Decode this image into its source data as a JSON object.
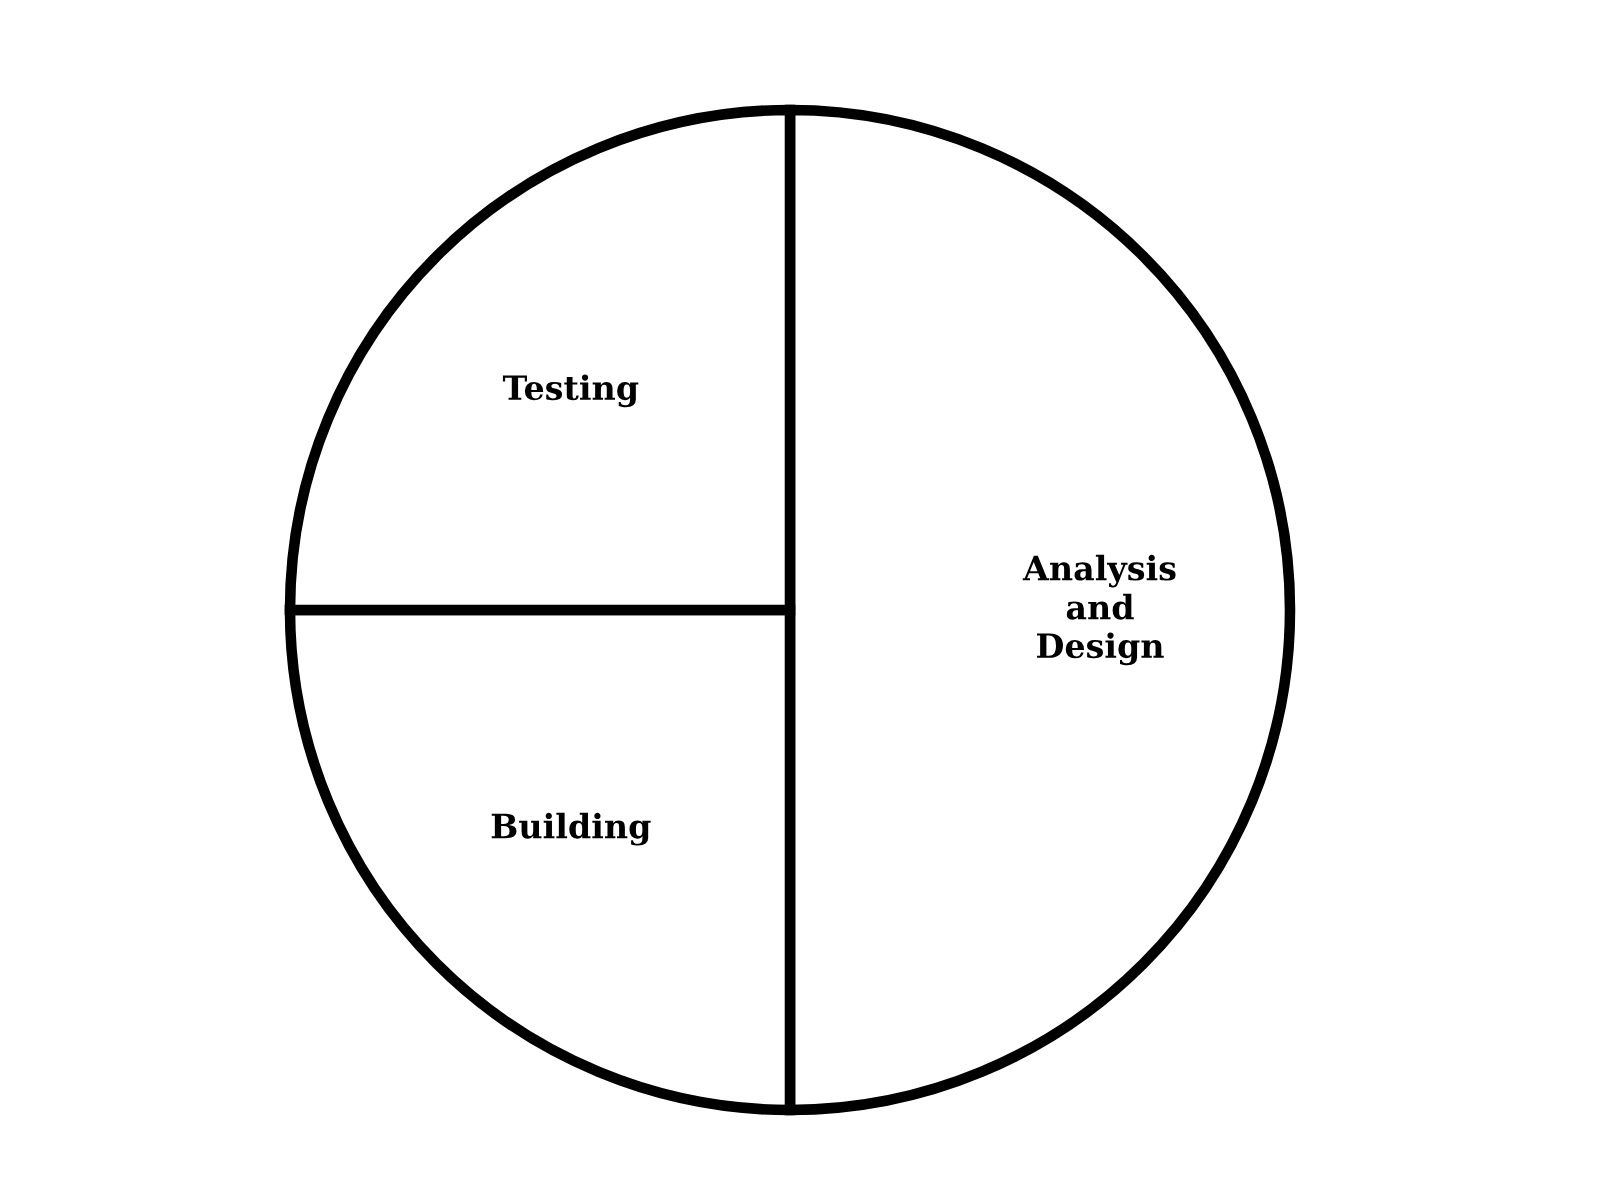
{
  "chart_data": {
    "type": "pie",
    "categories": [
      "Analysis\nand\nDesign",
      "Building",
      "Testing"
    ],
    "values": [
      50,
      25,
      25
    ],
    "colors": [
      "#ffffff",
      "#ffffff",
      "#ffffff"
    ]
  }
}
